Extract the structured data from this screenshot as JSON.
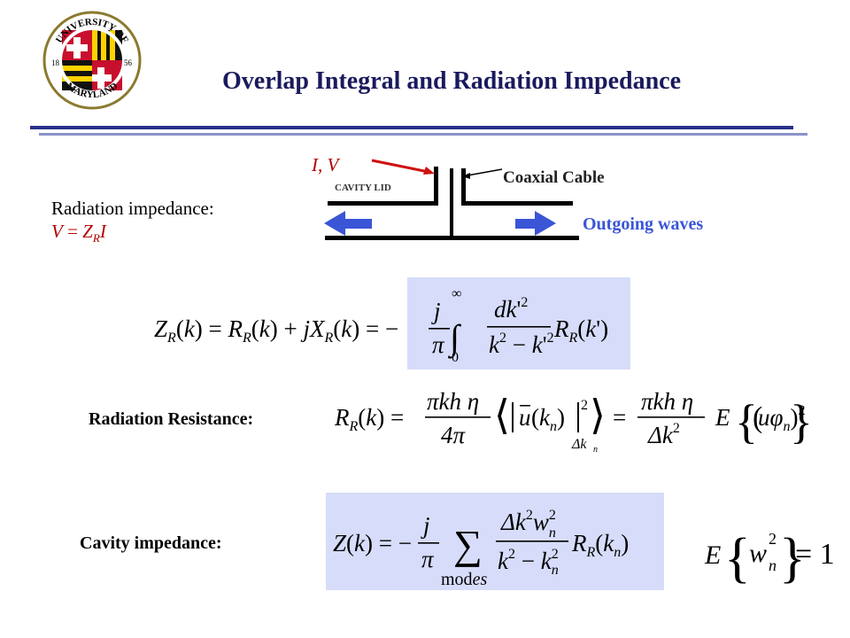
{
  "slide": {
    "title": "Overlap Integral and Radiation Impedance",
    "logo": {
      "text_top": "UNIVERSITY OF",
      "text_bottom": "MARYLAND",
      "year_left": "18",
      "year_right": "56"
    }
  },
  "diagram": {
    "current_voltage_label": "I, V",
    "cavity_lid_label": "CAVITY LID",
    "coaxial_label": "Coaxial Cable",
    "outgoing_label": "Outgoing waves"
  },
  "radiation_impedance": {
    "label": "Radiation impedance:",
    "eq_v": "V",
    "eq_eq": " = ",
    "eq_z": "Z",
    "eq_sub": "R",
    "eq_i": "I"
  },
  "equations": {
    "impedance_integral": "Z_R(k) = R_R(k) + jX_R(k) = -(j/π) ∫₀^∞ dk'² / (k² - k'²) R_R(k')",
    "radiation_resistance": "R_R(k) = (πkhη/4π) ⟨|ū(k_n)|²⟩_Δk_n = (πkhη/Δk²) E{(uφ_n)²}",
    "cavity_impedance": "Z(k) = -(j/π) Σ_modes (Δk² w_n² / (k² - k_n²)) R_R(k_n)",
    "normalization": "E{w_n²} = 1"
  },
  "labels": {
    "radiation_resistance": "Radiation Resistance:",
    "cavity_impedance": "Cavity impedance:"
  },
  "colors": {
    "title": "#1a1a5e",
    "equation_box": "#d7dcfa",
    "accent_red": "#b00000",
    "outgoing_blue": "#3a55d6",
    "separator_navy": "#2a2f8a"
  }
}
